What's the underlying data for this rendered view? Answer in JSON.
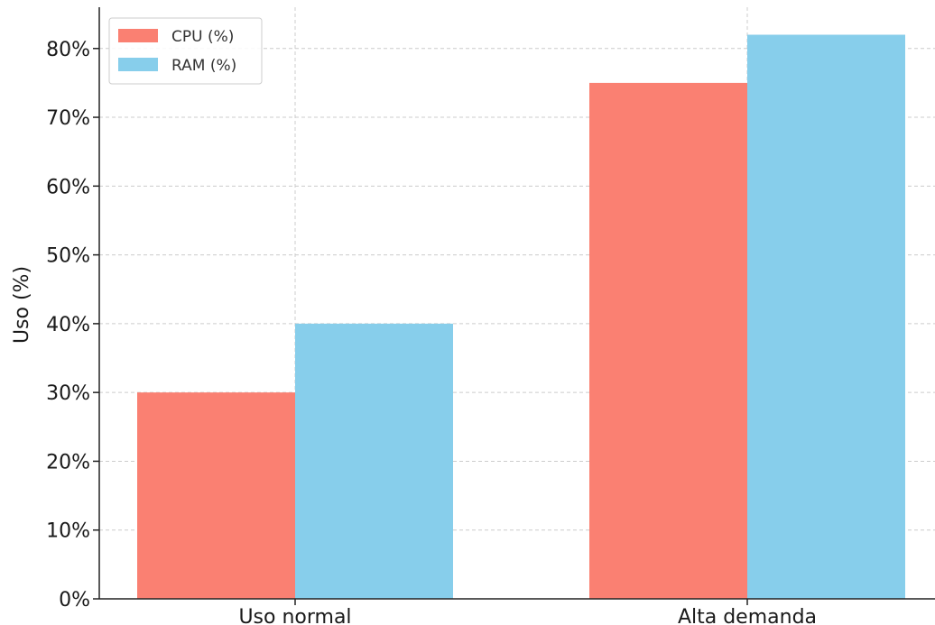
{
  "chart_data": {
    "type": "bar",
    "title": "",
    "xlabel": "",
    "ylabel": "Uso (%)",
    "categories": [
      "Uso normal",
      "Alta demanda"
    ],
    "series": [
      {
        "name": "CPU (%)",
        "values": [
          30,
          75
        ],
        "color": "#fa8072"
      },
      {
        "name": "RAM (%)",
        "values": [
          40,
          82
        ],
        "color": "#87ceeb"
      }
    ],
    "ylim": [
      0,
      86
    ],
    "yticks": [
      0,
      10,
      20,
      30,
      40,
      50,
      60,
      70,
      80
    ],
    "ytick_labels": [
      "0%",
      "10%",
      "20%",
      "30%",
      "40%",
      "50%",
      "60%",
      "70%",
      "80%"
    ],
    "grid": true,
    "grid_style": "dashed",
    "legend_position": "top-left"
  }
}
